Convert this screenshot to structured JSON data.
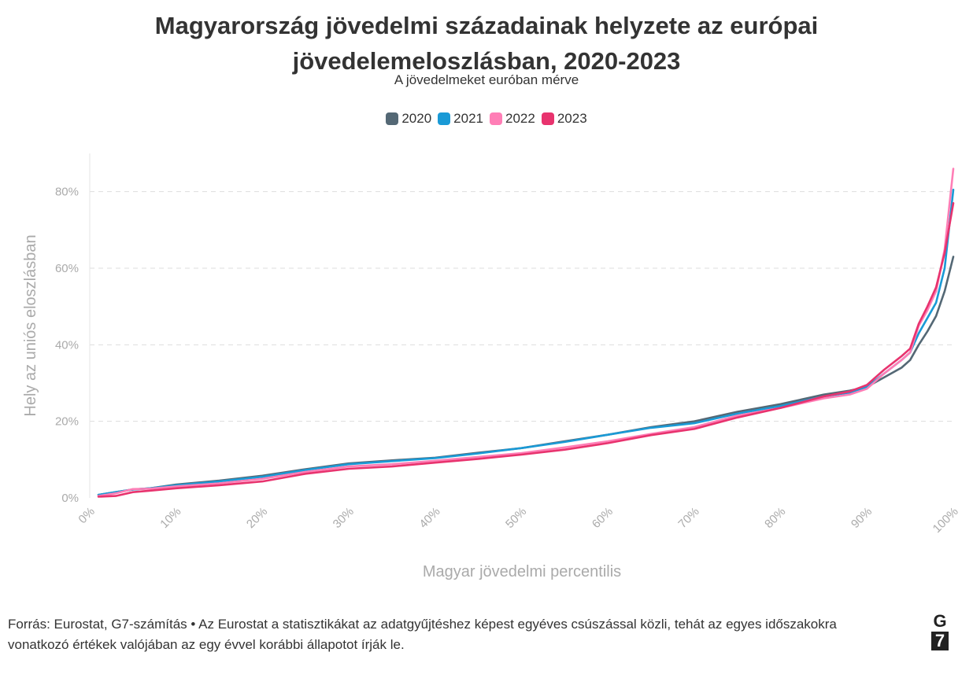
{
  "title": "Magyarország jövedelmi századainak helyzete az európai jövedelemeloszlásban, 2020-2023",
  "subtitle": "A jövedelmeket euróban mérve",
  "footer": "Forrás: Eurostat, G7-számítás • Az Eurostat a statisztikákat az adatgyűjtéshez képest egyéves csúszással közli, tehát az egyes időszakokra vonatkozó értékek valójában az egy évvel korábbi állapotot írják le.",
  "logo": {
    "line1": "G",
    "line2": "7"
  },
  "colors": {
    "2020": "#546875",
    "2021": "#1a9ad6",
    "2022": "#ff7eb6",
    "2023": "#e8336e",
    "grid": "#dddddd"
  },
  "chart_data": {
    "type": "line",
    "title": "Magyarország jövedelmi századainak helyzete az európai jövedelemeloszlásban, 2020-2023",
    "subtitle": "A jövedelmeket euróban mérve",
    "xlabel": "Magyar jövedelmi percentilis",
    "ylabel": "Hely az uniós eloszlásban",
    "xlim": [
      0,
      100
    ],
    "ylim": [
      0,
      90
    ],
    "x_ticks": [
      0,
      10,
      20,
      30,
      40,
      50,
      60,
      70,
      80,
      90,
      100
    ],
    "x_tick_labels": [
      "0%",
      "10%",
      "20%",
      "30%",
      "40%",
      "50%",
      "60%",
      "70%",
      "80%",
      "90%",
      "100%"
    ],
    "y_ticks": [
      0,
      20,
      40,
      60,
      80
    ],
    "y_tick_labels": [
      "0%",
      "20%",
      "40%",
      "60%",
      "80%"
    ],
    "grid": "horizontal dashed",
    "legend_position": "top-center",
    "x": [
      1,
      3,
      5,
      7,
      10,
      15,
      20,
      25,
      30,
      35,
      40,
      45,
      50,
      55,
      60,
      65,
      70,
      75,
      80,
      85,
      88,
      90,
      92,
      94,
      95,
      96,
      97,
      98,
      99,
      100
    ],
    "series": [
      {
        "name": "2020",
        "values": [
          0.8,
          1.5,
          2.2,
          2.5,
          3.5,
          4.5,
          5.8,
          7.5,
          9.0,
          9.8,
          10.5,
          11.8,
          13.0,
          14.8,
          16.5,
          18.5,
          20.0,
          22.5,
          24.5,
          27.0,
          28.0,
          29.0,
          31.5,
          34.0,
          36.0,
          40.0,
          43.5,
          47.5,
          54.0,
          63.0
        ]
      },
      {
        "name": "2021",
        "values": [
          0.8,
          1.5,
          2.2,
          2.5,
          3.3,
          4.3,
          5.5,
          7.3,
          8.8,
          9.6,
          10.4,
          11.6,
          13.0,
          14.6,
          16.5,
          18.3,
          19.5,
          22.0,
          24.0,
          26.5,
          27.5,
          29.0,
          32.5,
          36.0,
          38.0,
          43.0,
          47.0,
          51.0,
          60.0,
          80.5
        ]
      },
      {
        "name": "2022",
        "values": [
          0.5,
          1.2,
          2.3,
          2.4,
          3.0,
          3.8,
          5.0,
          6.8,
          8.2,
          8.8,
          9.7,
          10.7,
          11.7,
          13.2,
          14.8,
          16.7,
          18.5,
          21.5,
          23.5,
          26.0,
          27.0,
          28.5,
          32.5,
          36.0,
          38.0,
          45.0,
          49.0,
          54.0,
          65.0,
          86.0
        ]
      },
      {
        "name": "2023",
        "values": [
          0.3,
          0.5,
          1.5,
          1.9,
          2.5,
          3.3,
          4.3,
          6.3,
          7.6,
          8.2,
          9.2,
          10.2,
          11.3,
          12.6,
          14.3,
          16.4,
          18.0,
          21.0,
          23.5,
          26.5,
          27.8,
          29.5,
          33.5,
          37.0,
          39.0,
          45.5,
          50.0,
          55.0,
          64.0,
          77.0
        ]
      }
    ]
  }
}
